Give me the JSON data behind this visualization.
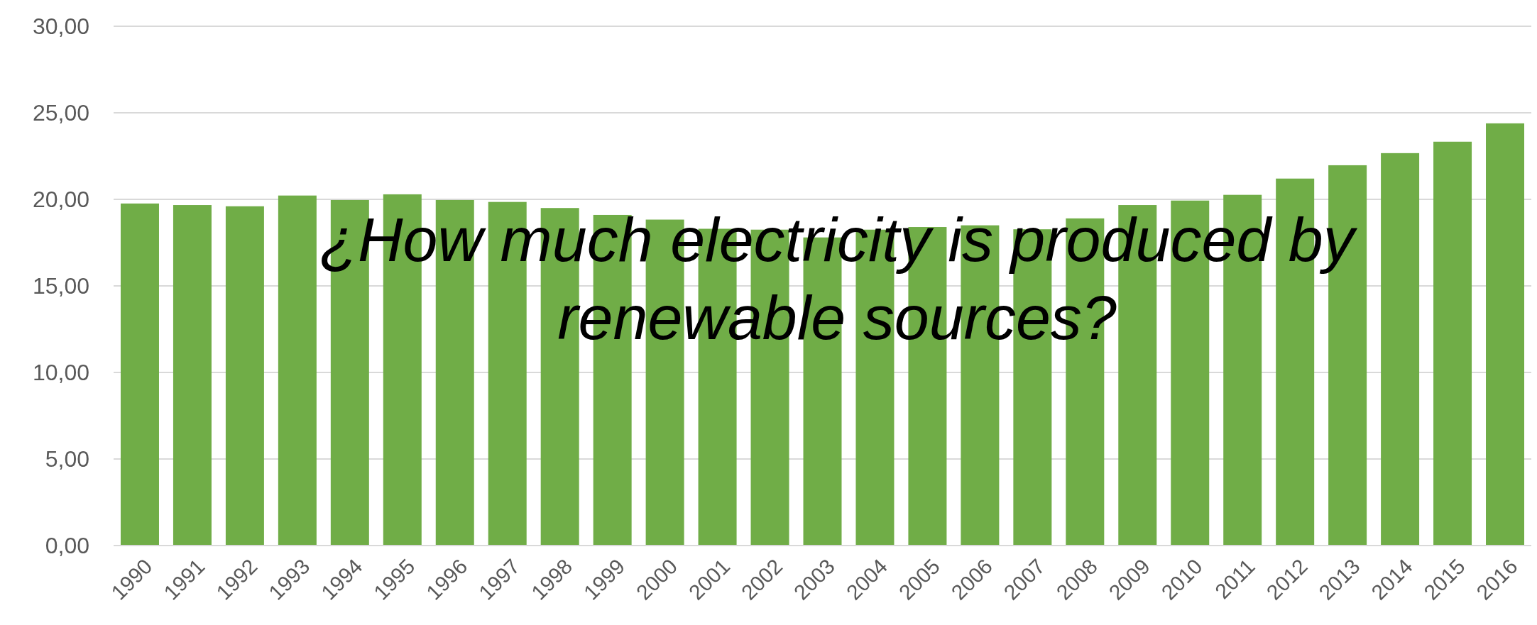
{
  "chart_data": {
    "type": "bar",
    "title": "¿How much electricity is produced by renewable sources?",
    "categories": [
      "1990",
      "1991",
      "1992",
      "1993",
      "1994",
      "1995",
      "1996",
      "1997",
      "1998",
      "1999",
      "2000",
      "2001",
      "2002",
      "2003",
      "2004",
      "2005",
      "2006",
      "2007",
      "2008",
      "2009",
      "2010",
      "2011",
      "2012",
      "2013",
      "2014",
      "2015",
      "2016"
    ],
    "values": [
      19.76,
      19.67,
      19.6,
      20.22,
      19.96,
      20.29,
      19.96,
      19.85,
      19.5,
      19.1,
      18.83,
      18.3,
      18.25,
      17.8,
      18.25,
      18.4,
      18.5,
      18.27,
      18.9,
      19.67,
      19.93,
      20.26,
      21.2,
      21.97,
      22.67,
      23.33,
      24.39
    ],
    "color": "#70ad47",
    "ylim": [
      0,
      30
    ],
    "yticks": [
      {
        "value": 0,
        "label": "0,00"
      },
      {
        "value": 5,
        "label": "5,00"
      },
      {
        "value": 10,
        "label": "10,00"
      },
      {
        "value": 15,
        "label": "15,00"
      },
      {
        "value": 20,
        "label": "20,00"
      },
      {
        "value": 25,
        "label": "25,00"
      },
      {
        "value": 30,
        "label": "30,00"
      }
    ],
    "grid": "y"
  }
}
